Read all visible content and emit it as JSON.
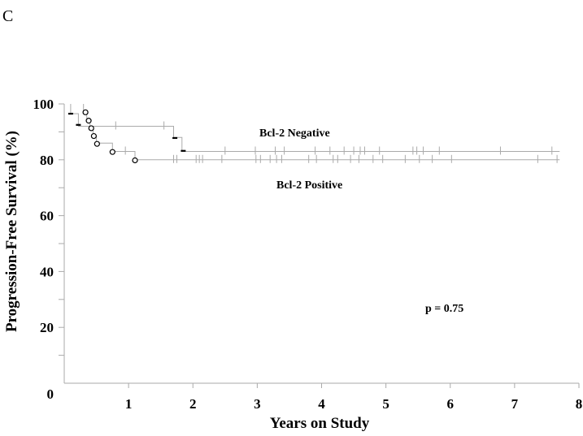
{
  "chart_data": {
    "type": "line",
    "panel_label": "C",
    "xlabel": "Years on Study",
    "ylabel": "Progression-Free Survival (%)",
    "xlim": [
      0,
      8
    ],
    "ylim": [
      0,
      100
    ],
    "x_ticks": [
      1,
      2,
      3,
      4,
      5,
      6,
      7,
      8
    ],
    "y_ticks": [
      20,
      40,
      60,
      80,
      100
    ],
    "origin_label": "0",
    "grid": false,
    "annotation": "p = 0.75",
    "series": [
      {
        "label": "Bcl-2 Negative",
        "color": "#aaaaaa",
        "steps": [
          [
            0.1,
            100
          ],
          [
            0.1,
            96.5
          ],
          [
            0.22,
            96.5
          ],
          [
            0.22,
            92
          ],
          [
            1.7,
            92
          ],
          [
            1.7,
            88
          ],
          [
            1.83,
            88
          ],
          [
            1.83,
            83
          ],
          [
            7.7,
            83
          ]
        ],
        "events": [
          [
            0.1,
            96.5
          ],
          [
            0.22,
            92.5
          ],
          [
            1.72,
            87.8
          ],
          [
            1.85,
            83.2
          ]
        ],
        "censored": [
          [
            0.8,
            92
          ],
          [
            1.55,
            92
          ],
          [
            2.5,
            83
          ],
          [
            2.97,
            83
          ],
          [
            3.28,
            83
          ],
          [
            3.42,
            83
          ],
          [
            3.9,
            83
          ],
          [
            4.13,
            83
          ],
          [
            4.35,
            83
          ],
          [
            4.5,
            83
          ],
          [
            4.6,
            83
          ],
          [
            4.67,
            83
          ],
          [
            4.9,
            83
          ],
          [
            5.42,
            83
          ],
          [
            5.48,
            83
          ],
          [
            5.58,
            83
          ],
          [
            5.83,
            83
          ],
          [
            6.78,
            83
          ],
          [
            7.58,
            83
          ]
        ]
      },
      {
        "label": "Bcl-2 Positive",
        "color": "#aaaaaa",
        "steps": [
          [
            0.3,
            100
          ],
          [
            0.3,
            97
          ],
          [
            0.35,
            97
          ],
          [
            0.35,
            94
          ],
          [
            0.4,
            94
          ],
          [
            0.4,
            91
          ],
          [
            0.45,
            91
          ],
          [
            0.45,
            88.5
          ],
          [
            0.5,
            88.5
          ],
          [
            0.5,
            86
          ],
          [
            0.75,
            86
          ],
          [
            0.75,
            83
          ],
          [
            1.1,
            83
          ],
          [
            1.1,
            80
          ],
          [
            7.7,
            80
          ]
        ],
        "events": [
          [
            0.33,
            97
          ],
          [
            0.38,
            94
          ],
          [
            0.42,
            91.3
          ],
          [
            0.46,
            88.5
          ],
          [
            0.51,
            85.7
          ],
          [
            0.75,
            82.8
          ],
          [
            1.1,
            79.8
          ]
        ],
        "censored": [
          [
            0.95,
            83
          ],
          [
            1.7,
            80
          ],
          [
            1.75,
            80
          ],
          [
            2.05,
            80
          ],
          [
            2.1,
            80
          ],
          [
            2.15,
            80
          ],
          [
            2.45,
            80
          ],
          [
            2.98,
            80
          ],
          [
            3.05,
            80
          ],
          [
            3.2,
            80
          ],
          [
            3.3,
            80
          ],
          [
            3.38,
            80
          ],
          [
            3.8,
            80
          ],
          [
            3.92,
            80
          ],
          [
            4.18,
            80
          ],
          [
            4.25,
            80
          ],
          [
            4.45,
            80
          ],
          [
            4.58,
            80
          ],
          [
            4.8,
            80
          ],
          [
            4.95,
            80
          ],
          [
            5.3,
            80
          ],
          [
            5.52,
            80
          ],
          [
            5.72,
            80
          ],
          [
            6.02,
            80
          ],
          [
            7.36,
            80
          ],
          [
            7.66,
            80
          ]
        ]
      }
    ]
  }
}
